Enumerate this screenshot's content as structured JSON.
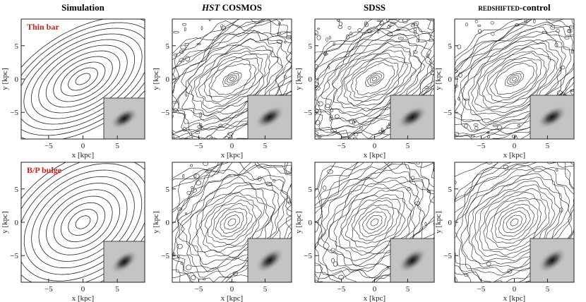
{
  "columns": [
    {
      "title": "Simulation"
    },
    {
      "title_em": "HST",
      "title": " COSMOS"
    },
    {
      "title": "SDSS"
    },
    {
      "title_sc": "redshifted",
      "title": "-control"
    }
  ],
  "rows": [
    {
      "label": "Thin bar"
    },
    {
      "label": "B/P bulge"
    }
  ],
  "axes": {
    "x_label": "x [kpc]",
    "y_label": "y [kpc]",
    "lim": [
      -9,
      9
    ],
    "ticks": [
      {
        "value": -5,
        "label": "−5"
      },
      0,
      5
    ]
  }
}
